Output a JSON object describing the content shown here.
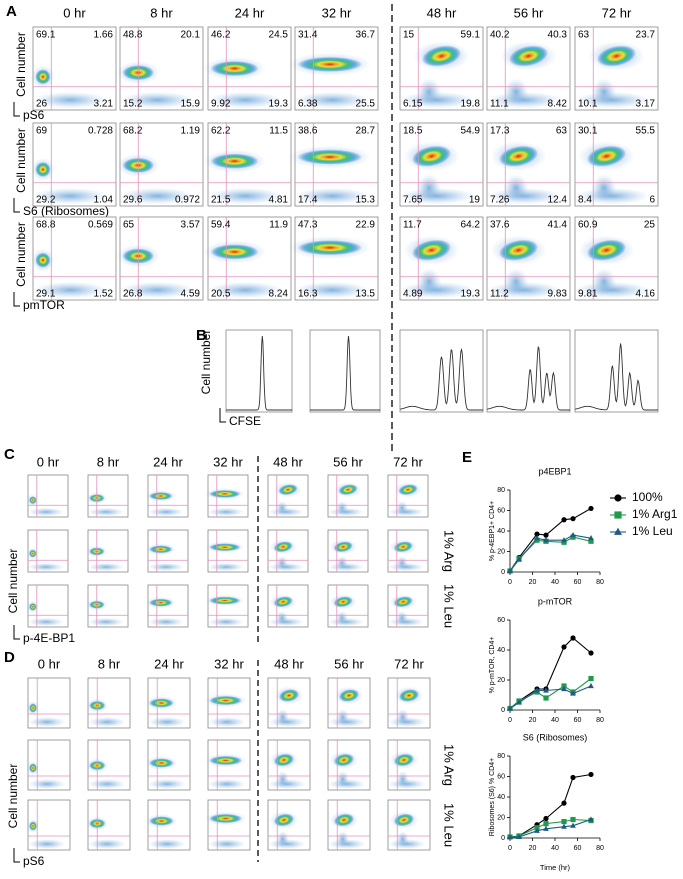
{
  "panel_a": {
    "letter": "A",
    "times": [
      "0 hr",
      "8 hr",
      "24 hr",
      "32 hr",
      "48 hr",
      "56 hr",
      "72 hr"
    ],
    "rows": [
      {
        "y_label": "Cell number",
        "x_label": "pS6",
        "quadrants": [
          [
            "69.1",
            "1.66",
            "26",
            "3.21"
          ],
          [
            "48.8",
            "20.1",
            "15.2",
            "15.9"
          ],
          [
            "46.2",
            "24.5",
            "9.92",
            "19.3"
          ],
          [
            "31.4",
            "36.7",
            "6.38",
            "25.5"
          ],
          [
            "15",
            "59.1",
            "6.15",
            "19.8"
          ],
          [
            "40.2",
            "40.3",
            "11.1",
            "8.42"
          ],
          [
            "63",
            "23.7",
            "10.1",
            "3.17"
          ]
        ]
      },
      {
        "y_label": "Cell number",
        "x_label": "S6 (Ribosomes)",
        "quadrants": [
          [
            "69",
            "0.728",
            "29.2",
            "1.04"
          ],
          [
            "68.2",
            "1.19",
            "29.6",
            "0.972"
          ],
          [
            "62.2",
            "11.5",
            "21.5",
            "4.81"
          ],
          [
            "38.6",
            "28.7",
            "17.4",
            "15.3"
          ],
          [
            "18.5",
            "54.9",
            "7.65",
            "19"
          ],
          [
            "17.3",
            "63",
            "7.26",
            "12.4"
          ],
          [
            "30.1",
            "55.5",
            "8.4",
            "6"
          ]
        ]
      },
      {
        "y_label": "Cell number",
        "x_label": "pmTOR",
        "quadrants": [
          [
            "68.8",
            "0.569",
            "29.1",
            "1.52"
          ],
          [
            "65",
            "3.57",
            "26.8",
            "4.59"
          ],
          [
            "59.4",
            "11.9",
            "20.5",
            "8.24"
          ],
          [
            "47.3",
            "22.9",
            "16.3",
            "13.5"
          ],
          [
            "11.7",
            "64.2",
            "4.89",
            "19.3"
          ],
          [
            "37.6",
            "41.4",
            "11.2",
            "9.83"
          ],
          [
            "60.9",
            "25",
            "9.81",
            "4.16"
          ]
        ]
      }
    ]
  },
  "panel_b": {
    "letter": "B",
    "y_label": "Cell number",
    "x_label": "CFSE"
  },
  "panel_c": {
    "letter": "C",
    "times": [
      "0 hr",
      "8 hr",
      "24 hr",
      "32 hr",
      "48 hr",
      "56 hr",
      "72 hr"
    ],
    "row_labels": [
      "1% Arg",
      "1% Leu"
    ],
    "y_label": "Cell number",
    "x_label": "p-4E-BP1"
  },
  "panel_d": {
    "letter": "D",
    "times": [
      "0 hr",
      "8 hr",
      "24 hr",
      "32 hr",
      "48 hr",
      "56 hr",
      "72 hr"
    ],
    "row_labels": [
      "1% Arg",
      "1% Leu"
    ],
    "y_label": "Cell number",
    "x_label": "pS6"
  },
  "panel_e": {
    "letter": "E"
  },
  "chart_data": [
    {
      "type": "line",
      "title": "p4EBP1",
      "y_label": "% p-4EBP1+ CD4+",
      "x": [
        0,
        8,
        24,
        32,
        48,
        56,
        72
      ],
      "xlim": [
        0,
        80
      ],
      "xticks": [
        0,
        20,
        40,
        60,
        80
      ],
      "ylim": [
        0,
        80
      ],
      "yticks": [
        0,
        20,
        40,
        60,
        80
      ],
      "legend": "right",
      "series": [
        {
          "name": "100%",
          "color": "#000000",
          "marker": "circle",
          "values": [
            1,
            14,
            37,
            36,
            51,
            52,
            62
          ]
        },
        {
          "name": "1% Arg1",
          "color": "#1e9a4c",
          "marker": "square",
          "values": [
            1,
            13,
            31,
            30,
            29,
            34,
            30
          ]
        },
        {
          "name": "1% Leu",
          "color": "#1f5a86",
          "marker": "triangle",
          "values": [
            1,
            12,
            33,
            31,
            31,
            36,
            33
          ]
        }
      ]
    },
    {
      "type": "line",
      "title": "p-mTOR",
      "y_label": "% p-mTOR, CD4+",
      "x": [
        0,
        8,
        24,
        32,
        48,
        56,
        72
      ],
      "xlim": [
        0,
        80
      ],
      "xticks": [
        0,
        20,
        40,
        60,
        80
      ],
      "ylim": [
        0,
        60
      ],
      "yticks": [
        0,
        20,
        40,
        60
      ],
      "series": [
        {
          "name": "100%",
          "color": "#000000",
          "marker": "circle",
          "values": [
            1,
            6,
            14,
            14,
            42,
            48,
            38
          ]
        },
        {
          "name": "1% Arg1",
          "color": "#1e9a4c",
          "marker": "square",
          "values": [
            1,
            6,
            12,
            8,
            16,
            12,
            21
          ]
        },
        {
          "name": "1% Leu",
          "color": "#1f5a86",
          "marker": "triangle",
          "values": [
            1,
            5,
            13,
            13,
            14,
            11,
            16
          ]
        }
      ]
    },
    {
      "type": "line",
      "title": "S6 (Ribosomes)",
      "y_label": "Ribosomes (S6) % CD4+",
      "x_label": "Time (hr)",
      "x": [
        0,
        8,
        24,
        32,
        48,
        56,
        72
      ],
      "xlim": [
        0,
        80
      ],
      "xticks": [
        0,
        20,
        40,
        60,
        80
      ],
      "ylim": [
        0,
        80
      ],
      "yticks": [
        0,
        20,
        40,
        60,
        80
      ],
      "series": [
        {
          "name": "100%",
          "color": "#000000",
          "marker": "circle",
          "values": [
            1,
            2,
            13,
            19,
            34,
            59,
            62
          ]
        },
        {
          "name": "1% Arg1",
          "color": "#1e9a4c",
          "marker": "square",
          "values": [
            1,
            2,
            10,
            14,
            16,
            18,
            17
          ]
        },
        {
          "name": "1% Leu",
          "color": "#1f5a86",
          "marker": "triangle",
          "values": [
            1,
            1,
            7,
            9,
            11,
            12,
            18
          ]
        }
      ]
    }
  ]
}
